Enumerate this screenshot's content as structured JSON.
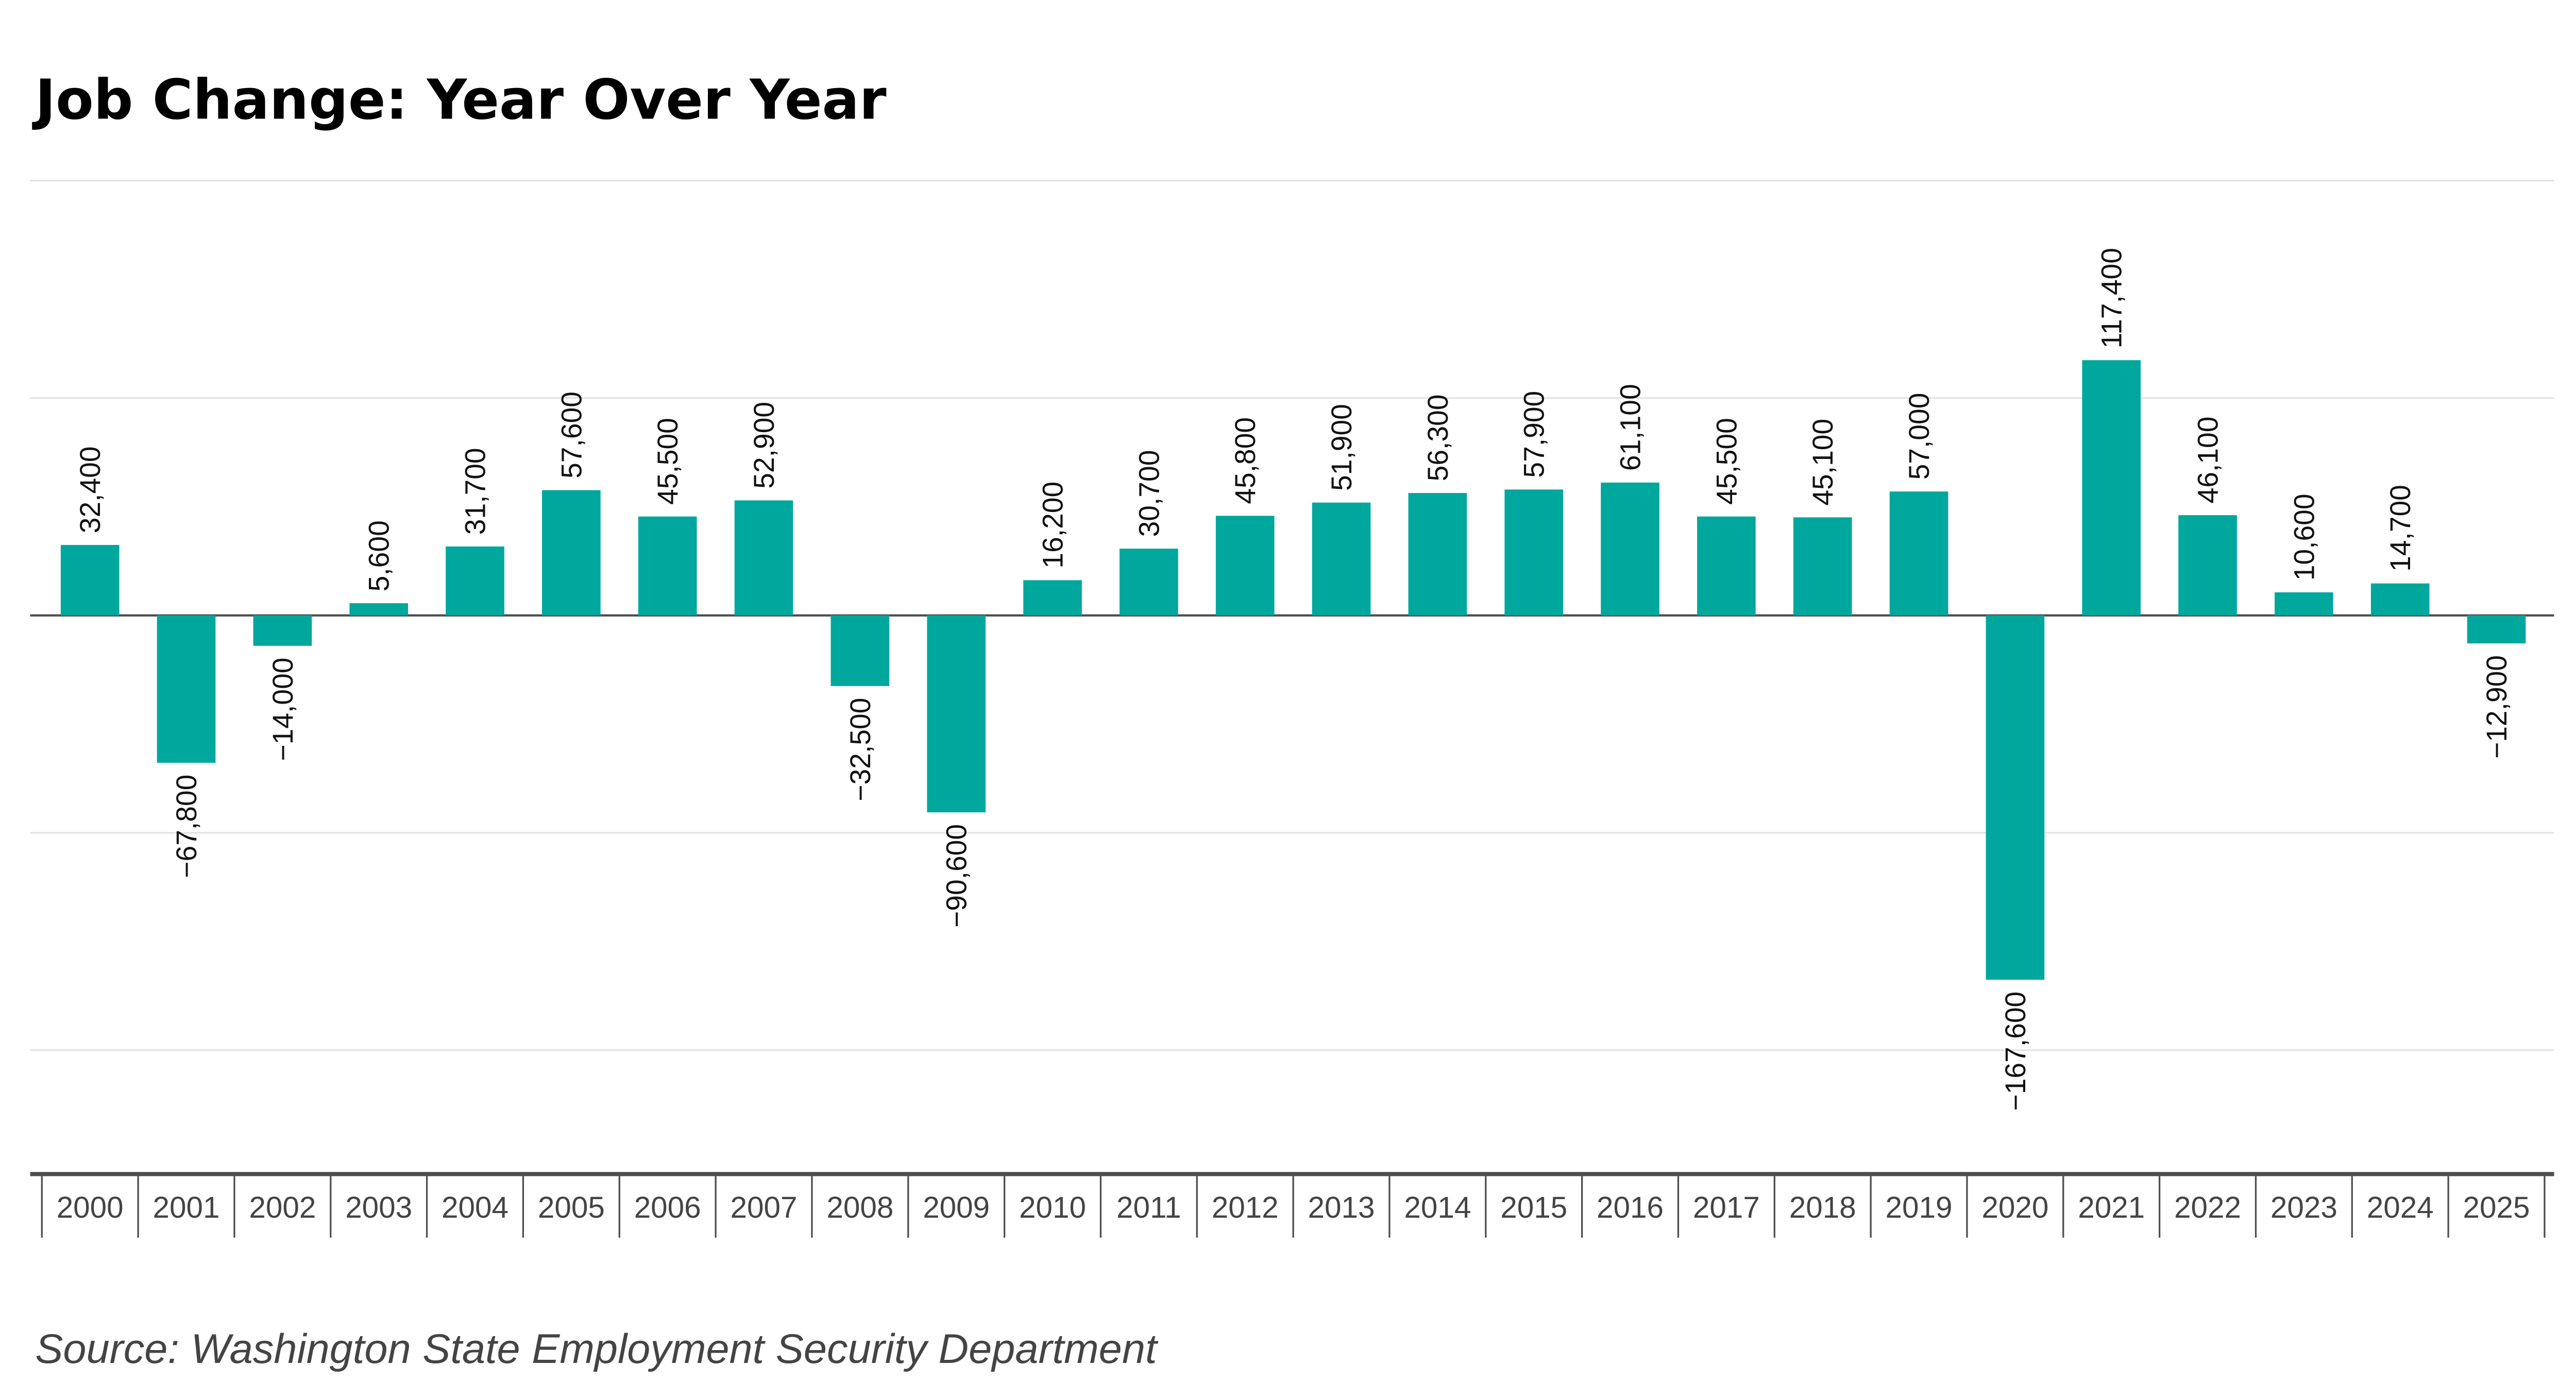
{
  "chart_data": {
    "type": "bar",
    "title": "Job Change: Year Over Year",
    "source": "Source: Washington State Employment Security Department",
    "categories": [
      "2000",
      "2001",
      "2002",
      "2003",
      "2004",
      "2005",
      "2006",
      "2007",
      "2008",
      "2009",
      "2010",
      "2011",
      "2012",
      "2013",
      "2014",
      "2015",
      "2016",
      "2017",
      "2018",
      "2019",
      "2020",
      "2021",
      "2022",
      "2023",
      "2024",
      "2025"
    ],
    "values": [
      32400,
      -67800,
      -14000,
      5600,
      31700,
      57600,
      45500,
      52900,
      -32500,
      -90600,
      16200,
      30700,
      45800,
      51900,
      56300,
      57900,
      61100,
      45500,
      45100,
      57000,
      -167600,
      117400,
      46100,
      10600,
      14700,
      -12900
    ],
    "data_labels": [
      "32,400",
      "−67,800",
      "−14,000",
      "5,600",
      "31,700",
      "57,600",
      "45,500",
      "52,900",
      "−32,500",
      "−90,600",
      "16,200",
      "30,700",
      "45,800",
      "51,900",
      "56,300",
      "57,900",
      "61,100",
      "45,500",
      "45,100",
      "57,000",
      "−167,600",
      "117,400",
      "46,100",
      "10,600",
      "14,700",
      "−12,900"
    ],
    "ylim": [
      -257000,
      200000
    ],
    "gridlines": [
      200000,
      100000,
      0,
      -100000,
      -200000
    ],
    "grid": true,
    "y_tick_labels_shown": false,
    "xlabel": "",
    "ylabel": "",
    "bar_color": "#00A79D",
    "axis_color": "#4D4D4D",
    "grid_color": "#E3E3E3"
  }
}
